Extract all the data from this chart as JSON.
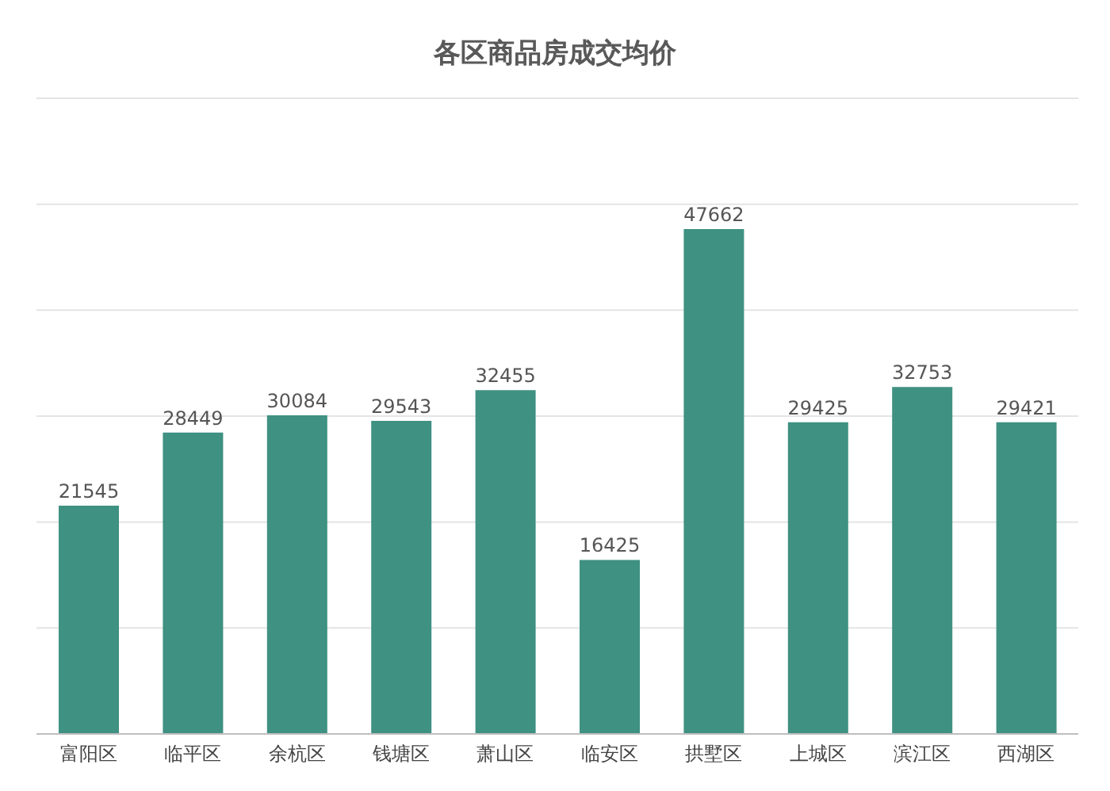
{
  "chart_data": {
    "type": "bar",
    "title": "各区商品房成交均价",
    "categories": [
      "富阳区",
      "临平区",
      "余杭区",
      "钱塘区",
      "萧山区",
      "临安区",
      "拱墅区",
      "上城区",
      "滨江区",
      "西湖区"
    ],
    "values": [
      21545,
      28449,
      30084,
      29543,
      32455,
      16425,
      47662,
      29425,
      32753,
      29421
    ],
    "color": "#3f9182",
    "ylim": [
      0,
      60000
    ],
    "grid": "y",
    "tick_labels": "x",
    "data_labels": true
  }
}
